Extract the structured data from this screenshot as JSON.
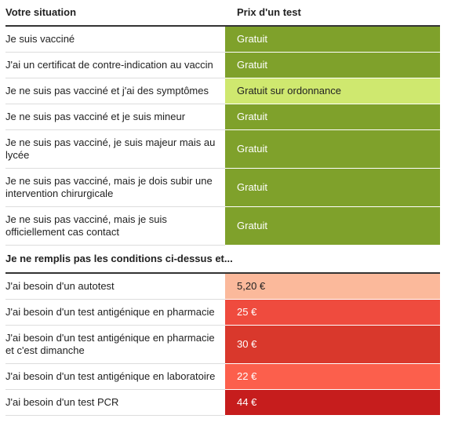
{
  "header": {
    "situation": "Votre situation",
    "price": "Prix d'un test"
  },
  "rows": [
    {
      "situation": "Je suis vacciné",
      "price": "Gratuit",
      "color": "#7fa12b"
    },
    {
      "situation": "J'ai un certificat de contre-indication au vaccin",
      "price": "Gratuit",
      "color": "#7fa12b"
    },
    {
      "situation": "Je ne suis pas vacciné et j'ai des symptômes",
      "price": "Gratuit sur ordonnance",
      "color": "#cfe86f"
    },
    {
      "situation": "Je ne suis pas vacciné et je suis mineur",
      "price": "Gratuit",
      "color": "#7fa12b"
    },
    {
      "situation": "Je ne suis pas vacciné, je suis majeur mais au lycée",
      "price": "Gratuit",
      "color": "#7fa12b"
    },
    {
      "situation": "Je ne suis pas vacciné, mais je dois subir une intervention chirurgicale",
      "price": "Gratuit",
      "color": "#7fa12b"
    },
    {
      "situation": "Je ne suis pas vacciné, mais je suis officiellement cas contact",
      "price": "Gratuit",
      "color": "#7fa12b"
    }
  ],
  "section": "Je ne remplis pas les conditions ci-dessus et...",
  "rows2": [
    {
      "situation": "J'ai besoin d'un autotest",
      "price": "5,20 €",
      "color": "#fbb99b"
    },
    {
      "situation": "J'ai besoin d'un test antigénique en pharmacie",
      "price": "25 €",
      "color": "#ef4b3e"
    },
    {
      "situation": "J'ai besoin d'un test antigénique en pharmacie et c'est dimanche",
      "price": "30 €",
      "color": "#d9382c"
    },
    {
      "situation": "J'ai besoin d'un test antigénique en laboratoire",
      "price": "22 €",
      "color": "#fc5f4c"
    },
    {
      "situation": "J'ai besoin d'un test PCR",
      "price": "44 €",
      "color": "#c61d1d"
    }
  ]
}
